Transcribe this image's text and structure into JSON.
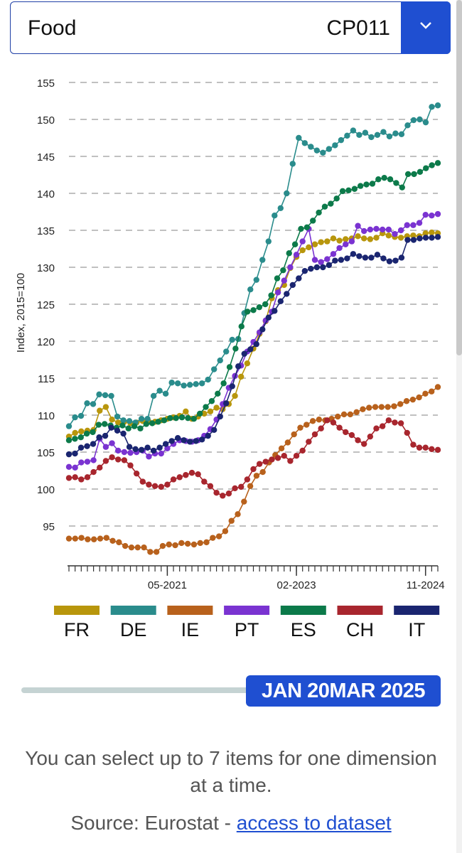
{
  "selector": {
    "label": "Food",
    "code": "CP011"
  },
  "chart_data": {
    "type": "line",
    "xlabel": "",
    "ylabel": "Index, 2015=100",
    "ylim": [
      90,
      155
    ],
    "yticks": [
      95,
      100,
      105,
      110,
      115,
      120,
      125,
      130,
      135,
      140,
      145,
      150,
      155
    ],
    "x_start": "2020-01",
    "x_end": "2025-01",
    "x_tick_labels": [
      "05-2021",
      "02-2023",
      "11-2024"
    ],
    "grid": true,
    "legend_position": "bottom",
    "series": [
      {
        "name": "FR",
        "color": "#b8960c",
        "values": [
          107.1,
          107.6,
          107.8,
          107.9,
          108.0,
          110.6,
          111.1,
          109.4,
          109.0,
          109.1,
          108.9,
          109.0,
          109.2,
          109.1,
          109.1,
          109.3,
          109.5,
          109.7,
          109.9,
          110.5,
          109.5,
          109.8,
          110.2,
          110.5,
          111.0,
          110.8,
          111.5,
          112.6,
          115.2,
          117.0,
          119.0,
          121.0,
          122.7,
          125.8,
          126.9,
          127.6,
          129.9,
          131.4,
          132.3,
          132.7,
          133.1,
          133.4,
          133.5,
          133.9,
          133.6,
          133.8,
          133.9,
          134.2,
          133.9,
          133.8,
          134.0,
          134.6,
          134.3,
          134.1,
          134.0,
          134.2,
          134.3,
          134.2,
          134.6,
          134.7,
          134.6
        ]
      },
      {
        "name": "DE",
        "color": "#2a8c8c",
        "values": [
          108.5,
          109.7,
          109.9,
          111.6,
          111.5,
          112.8,
          112.7,
          112.6,
          109.8,
          109.3,
          109.2,
          109.0,
          109.5,
          109.5,
          112.6,
          113.3,
          112.9,
          114.4,
          114.3,
          114.0,
          114.1,
          114.2,
          114.3,
          114.8,
          116.2,
          117.4,
          118.6,
          120.2,
          120.3,
          123.8,
          127.0,
          128.3,
          131.0,
          133.5,
          137.0,
          138.0,
          140.0,
          144.0,
          147.5,
          146.8,
          146.3,
          145.8,
          145.5,
          146.0,
          146.5,
          147.2,
          147.8,
          148.5,
          147.9,
          148.2,
          147.6,
          147.9,
          148.3,
          147.7,
          148.1,
          148.0,
          149.2,
          149.9,
          150.0,
          149.6,
          151.7,
          151.9
        ]
      },
      {
        "name": "IE",
        "color": "#b8611c",
        "values": [
          93.3,
          93.3,
          93.4,
          93.2,
          93.2,
          93.3,
          93.4,
          93.0,
          92.8,
          92.3,
          92.1,
          92.1,
          92.1,
          91.5,
          91.5,
          92.3,
          92.5,
          92.4,
          92.7,
          92.6,
          92.5,
          92.7,
          92.8,
          93.4,
          93.6,
          94.3,
          95.7,
          96.6,
          98.3,
          100.4,
          101.8,
          102.3,
          103.6,
          104.6,
          105.5,
          106.3,
          107.4,
          108.3,
          108.7,
          109.2,
          109.4,
          109.3,
          109.5,
          109.8,
          110.1,
          110.1,
          110.4,
          110.8,
          111.0,
          111.1,
          111.1,
          111.1,
          111.2,
          111.5,
          111.9,
          112.1,
          112.4,
          112.9,
          113.2,
          113.8
        ]
      },
      {
        "name": "PT",
        "color": "#7a33d1",
        "values": [
          103.0,
          102.9,
          103.6,
          103.7,
          103.9,
          106.8,
          105.7,
          106.2,
          105.2,
          105.0,
          104.9,
          105.0,
          105.2,
          104.4,
          104.8,
          104.8,
          105.5,
          106.1,
          106.6,
          106.5,
          106.4,
          106.6,
          107.2,
          108.1,
          109.4,
          111.5,
          113.7,
          115.3,
          116.7,
          118.6,
          119.9,
          121.2,
          122.8,
          124.0,
          126.6,
          128.2,
          130.0,
          131.7,
          133.5,
          135.2,
          131.0,
          130.7,
          131.1,
          131.8,
          132.6,
          133.1,
          133.5,
          135.6,
          134.9,
          135.1,
          135.2,
          135.1,
          135.1,
          134.5,
          135.0,
          135.7,
          135.7,
          136.0,
          137.1,
          137.0,
          137.2
        ]
      },
      {
        "name": "ES",
        "color": "#0c7a4a",
        "values": [
          106.6,
          106.8,
          107.0,
          107.5,
          107.7,
          108.7,
          108.8,
          108.6,
          108.3,
          108.6,
          108.2,
          108.5,
          108.2,
          108.8,
          108.9,
          109.1,
          109.3,
          109.6,
          109.6,
          109.7,
          109.6,
          109.5,
          110.2,
          111.1,
          111.9,
          112.9,
          114.3,
          116.5,
          119.0,
          122.0,
          124.0,
          124.2,
          124.6,
          125.0,
          126.2,
          128.5,
          129.6,
          131.9,
          133.1,
          135.2,
          135.4,
          136.3,
          137.4,
          138.2,
          138.6,
          139.3,
          140.3,
          140.4,
          140.6,
          141.0,
          141.2,
          141.3,
          141.9,
          142.1,
          141.9,
          141.4,
          140.8,
          142.6,
          142.6,
          142.9,
          143.4,
          143.8,
          144.1
        ]
      },
      {
        "name": "CH",
        "color": "#a8262e",
        "values": [
          101.5,
          101.6,
          101.3,
          101.6,
          102.3,
          102.9,
          103.8,
          104.3,
          104.0,
          103.9,
          103.2,
          102.1,
          101.0,
          100.6,
          100.4,
          100.3,
          100.6,
          101.3,
          101.6,
          101.9,
          102.2,
          102.0,
          101.0,
          100.4,
          99.5,
          99.1,
          99.4,
          100.1,
          100.3,
          101.3,
          102.7,
          103.4,
          103.7,
          104.0,
          104.2,
          104.5,
          103.8,
          104.5,
          105.2,
          106.4,
          107.4,
          108.2,
          109.3,
          109.0,
          108.3,
          107.7,
          107.3,
          106.6,
          106.1,
          107.1,
          108.2,
          108.5,
          109.3,
          109.0,
          108.9,
          107.6,
          106.0,
          105.6,
          105.6,
          105.4,
          105.3
        ]
      },
      {
        "name": "IT",
        "color": "#1a2570",
        "values": [
          104.7,
          104.8,
          105.6,
          105.8,
          106.1,
          107.0,
          107.2,
          108.3,
          107.9,
          107.5,
          105.7,
          105.4,
          105.3,
          105.6,
          105.2,
          105.6,
          106.1,
          106.5,
          106.9,
          106.6,
          106.4,
          106.5,
          106.7,
          107.2,
          108.0,
          109.8,
          111.6,
          113.9,
          116.6,
          118.3,
          118.9,
          119.6,
          121.6,
          123.2,
          124.1,
          125.4,
          126.4,
          127.6,
          128.5,
          129.5,
          129.8,
          130.0,
          130.0,
          130.3,
          130.9,
          131.0,
          131.2,
          131.8,
          131.5,
          131.3,
          131.3,
          131.7,
          131.2,
          130.8,
          130.9,
          131.3,
          133.7,
          133.7,
          133.9,
          134.0,
          134.0,
          134.1
        ]
      }
    ]
  },
  "slider": {
    "label": "JAN 20MAR 2025"
  },
  "note": {
    "text": "You can select up to 7 items for one dimension at a time."
  },
  "source": {
    "prefix": "Source: Eurostat - ",
    "link": "access to dataset"
  }
}
